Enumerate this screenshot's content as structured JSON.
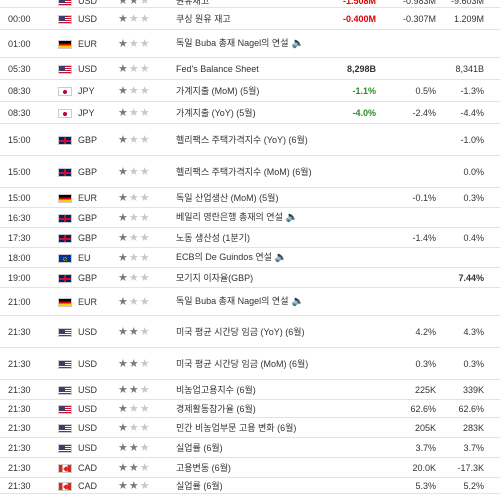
{
  "rows": [
    {
      "h": 12,
      "time": "",
      "cur": "USD",
      "stars": 2,
      "event": "원유재고",
      "actual": "-1.508M",
      "actual_color": "neg",
      "forecast": "-0.983M",
      "prev": "-9.603M"
    },
    {
      "h": 22,
      "time": "00:00",
      "cur": "USD",
      "stars": 1,
      "event": "쿠싱 원유 재고",
      "actual": "-0.400M",
      "actual_color": "neg",
      "forecast": "-0.307M",
      "prev": "1.209M"
    },
    {
      "h": 28,
      "time": "01:00",
      "cur": "EUR",
      "stars": 1,
      "event": "독일 Buba 총재 Nagel의 연설",
      "speech": true,
      "actual": "",
      "actual_color": "",
      "forecast": "",
      "prev": ""
    },
    {
      "h": 22,
      "time": "05:30",
      "cur": "USD",
      "stars": 1,
      "event": "Fed's Balance Sheet",
      "actual": "8,298B",
      "actual_color": "",
      "forecast": "",
      "prev": "8,341B"
    },
    {
      "h": 22,
      "time": "08:30",
      "cur": "JPY",
      "stars": 1,
      "event": "가계지출 (MoM) (5월)",
      "actual": "-1.1%",
      "actual_color": "pos",
      "forecast": "0.5%",
      "prev": "-1.3%"
    },
    {
      "h": 22,
      "time": "08:30",
      "cur": "JPY",
      "stars": 1,
      "event": "가계지출 (YoY) (5월)",
      "actual": "-4.0%",
      "actual_color": "pos",
      "forecast": "-2.4%",
      "prev": "-4.4%"
    },
    {
      "h": 32,
      "time": "15:00",
      "cur": "GBP",
      "stars": 1,
      "event": "헬리팩스 주택가격지수 (YoY) (6월)",
      "actual": "",
      "actual_color": "",
      "forecast": "",
      "prev": "-1.0%"
    },
    {
      "h": 32,
      "time": "15:00",
      "cur": "GBP",
      "stars": 1,
      "event": "헬리팩스 주택가격지수 (MoM) (6월)",
      "actual": "",
      "actual_color": "",
      "forecast": "",
      "prev": "0.0%"
    },
    {
      "h": 20,
      "time": "15:00",
      "cur": "EUR",
      "stars": 1,
      "event": "독일 산업생산 (MoM) (5월)",
      "actual": "",
      "actual_color": "",
      "forecast": "-0.1%",
      "prev": "0.3%"
    },
    {
      "h": 20,
      "time": "16:30",
      "cur": "GBP",
      "stars": 1,
      "event": "베일리 영란은행 총재의 연설",
      "speech": true,
      "actual": "",
      "actual_color": "",
      "forecast": "",
      "prev": ""
    },
    {
      "h": 20,
      "time": "17:30",
      "cur": "GBP",
      "stars": 1,
      "event": "노동 생산성 (1분기)",
      "actual": "",
      "actual_color": "",
      "forecast": "-1.4%",
      "prev": "0.4%"
    },
    {
      "h": 20,
      "time": "18:00",
      "cur": "EU",
      "stars": 1,
      "event": "ECB의 De Guindos 연설",
      "speech": true,
      "actual": "",
      "actual_color": "",
      "forecast": "",
      "prev": ""
    },
    {
      "h": 20,
      "time": "19:00",
      "cur": "GBP",
      "stars": 1,
      "event": "모기지 이자율(GBP)",
      "actual": "",
      "actual_color": "",
      "forecast": "",
      "prev": "7.44%",
      "prev_bold": true
    },
    {
      "h": 28,
      "time": "21:00",
      "cur": "EUR",
      "stars": 1,
      "event": "독일 Buba 총재 Nagel의 연설",
      "speech": true,
      "actual": "",
      "actual_color": "",
      "forecast": "",
      "prev": ""
    },
    {
      "h": 32,
      "time": "21:30",
      "cur": "USD",
      "stars": 2,
      "event": "미국 평균 시간당 임금 (YoY) (6월)",
      "actual": "",
      "actual_color": "",
      "forecast": "4.2%",
      "prev": "4.3%"
    },
    {
      "h": 32,
      "time": "21:30",
      "cur": "USD",
      "stars": 2,
      "event": "미국 평균 시간당 임금 (MoM) (6월)",
      "actual": "",
      "actual_color": "",
      "forecast": "0.3%",
      "prev": "0.3%"
    },
    {
      "h": 20,
      "time": "21:30",
      "cur": "USD",
      "stars": 2,
      "event": "비농업고용지수 (6월)",
      "actual": "",
      "actual_color": "",
      "forecast": "225K",
      "prev": "339K"
    },
    {
      "h": 18,
      "time": "21:30",
      "cur": "USD",
      "stars": 1,
      "event": "경제활동참가율 (6월)",
      "actual": "",
      "actual_color": "",
      "forecast": "62.6%",
      "prev": "62.6%"
    },
    {
      "h": 20,
      "time": "21:30",
      "cur": "USD",
      "stars": 1,
      "event": "민간 비농업부문 고용 변화 (6월)",
      "actual": "",
      "actual_color": "",
      "forecast": "205K",
      "prev": "283K"
    },
    {
      "h": 20,
      "time": "21:30",
      "cur": "USD",
      "stars": 2,
      "event": "실업률 (6월)",
      "actual": "",
      "actual_color": "",
      "forecast": "3.7%",
      "prev": "3.7%"
    },
    {
      "h": 20,
      "time": "21:30",
      "cur": "CAD",
      "stars": 2,
      "event": "고용변동 (6월)",
      "actual": "",
      "actual_color": "",
      "forecast": "20.0K",
      "prev": "-17.3K"
    },
    {
      "h": 16,
      "time": "21:30",
      "cur": "CAD",
      "stars": 2,
      "event": "실업률 (6월)",
      "actual": "",
      "actual_color": "",
      "forecast": "5.3%",
      "prev": "5.2%"
    }
  ]
}
